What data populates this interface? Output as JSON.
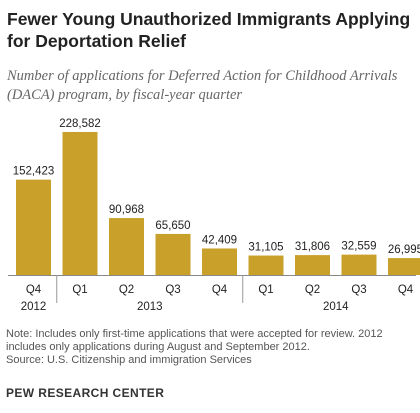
{
  "chart_data": {
    "type": "bar",
    "title": "Fewer Young Unauthorized Immigrants Applying for Deportation Relief",
    "subtitle": "Number of applications for Deferred Action for Childhood Arrivals (DACA) program, by fiscal-year quarter",
    "categories": [
      "Q4",
      "Q1",
      "Q2",
      "Q3",
      "Q4",
      "Q1",
      "Q2",
      "Q3",
      "Q4"
    ],
    "years": [
      {
        "label": "2012",
        "from": 0,
        "to": 0
      },
      {
        "label": "2013",
        "from": 1,
        "to": 4
      },
      {
        "label": "2014",
        "from": 5,
        "to": 8
      }
    ],
    "values": [
      152423,
      228582,
      90968,
      65650,
      42409,
      31105,
      31806,
      32559,
      26995
    ],
    "value_labels": [
      "152,423",
      "228,582",
      "90,968",
      "65,650",
      "42,409",
      "31,105",
      "31,806",
      "32,559",
      "26,995"
    ],
    "bar_color": "#c8a02a",
    "ylim": [
      0,
      240000
    ],
    "grid": false,
    "xlabel": "",
    "ylabel": ""
  },
  "notes": [
    "Note: Includes only first-time applications that were accepted for review. 2012",
    "includes only applications during August and September 2012.",
    "Source: U.S. Citizenship and immigration Services"
  ],
  "brand": "PEW RESEARCH CENTER"
}
